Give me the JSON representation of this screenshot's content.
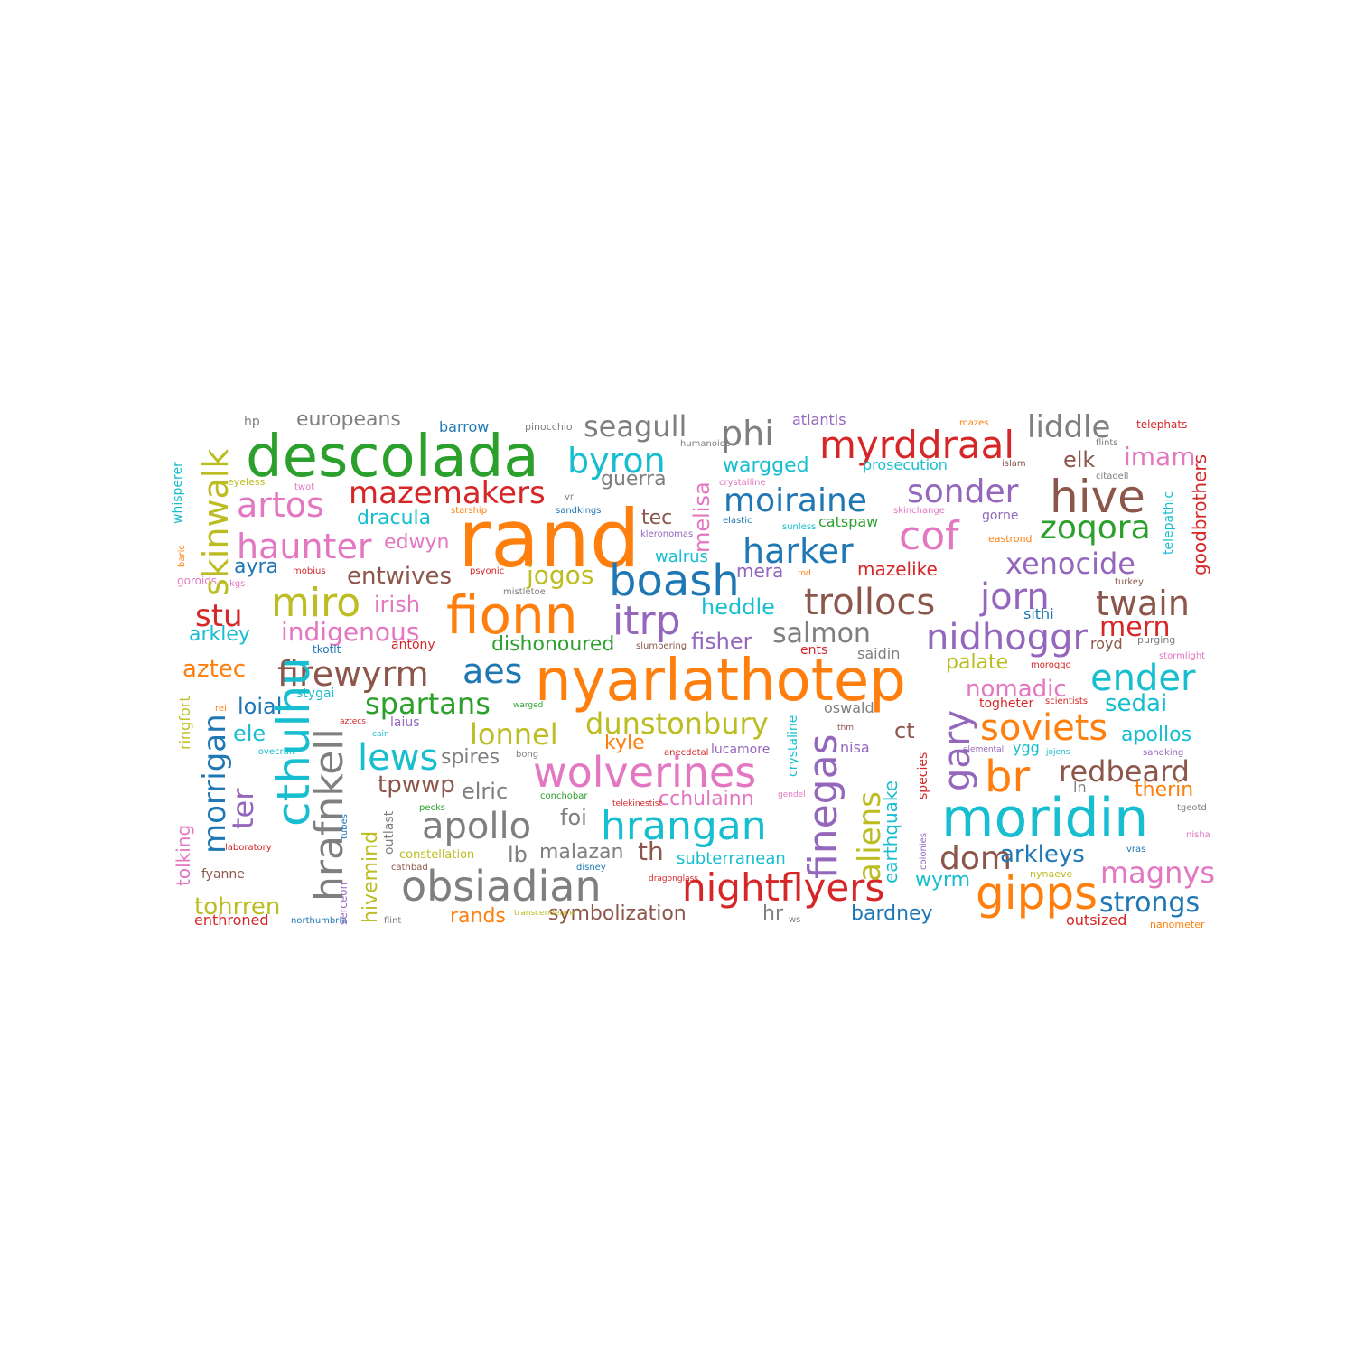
{
  "palette": {
    "blue": "#1f77b4",
    "orange": "#ff7f0e",
    "green": "#2ca02c",
    "red": "#d62728",
    "purple": "#9467bd",
    "brown": "#8c564b",
    "pink": "#e377c2",
    "gray": "#7f7f7f",
    "olive": "#bcbd22",
    "cyan": "#17becf"
  },
  "words": [
    {
      "text": "rand",
      "color": "orange"
    },
    {
      "text": "nyarlathotep",
      "color": "orange"
    },
    {
      "text": "descolada",
      "color": "green"
    },
    {
      "text": "moridin",
      "color": "cyan"
    },
    {
      "text": "fionn",
      "color": "orange"
    },
    {
      "text": "obsiadian",
      "color": "gray"
    },
    {
      "text": "wolverines",
      "color": "pink"
    },
    {
      "text": "nightflyers",
      "color": "red"
    },
    {
      "text": "hrangan",
      "color": "cyan"
    },
    {
      "text": "boash",
      "color": "blue"
    },
    {
      "text": "hive",
      "color": "brown"
    },
    {
      "text": "myrddraal",
      "color": "red"
    },
    {
      "text": "miro",
      "color": "olive"
    },
    {
      "text": "cthulhu",
      "color": "cyan"
    },
    {
      "text": "hrafnkell",
      "color": "gray"
    },
    {
      "text": "apollo",
      "color": "gray"
    },
    {
      "text": "gipps",
      "color": "orange"
    },
    {
      "text": "br",
      "color": "orange"
    },
    {
      "text": "finegas",
      "color": "purple"
    },
    {
      "text": "trollocs",
      "color": "brown"
    },
    {
      "text": "skinwalk",
      "color": "olive"
    },
    {
      "text": "morrigan",
      "color": "blue"
    },
    {
      "text": "moiraine",
      "color": "blue"
    },
    {
      "text": "cof",
      "color": "pink"
    },
    {
      "text": "nidhoggr",
      "color": "purple"
    },
    {
      "text": "itrp",
      "color": "purple"
    },
    {
      "text": "jorn",
      "color": "purple"
    },
    {
      "text": "twain",
      "color": "brown"
    },
    {
      "text": "ender",
      "color": "cyan"
    },
    {
      "text": "soviets",
      "color": "orange"
    },
    {
      "text": "firewyrm",
      "color": "brown"
    },
    {
      "text": "artos",
      "color": "pink"
    },
    {
      "text": "haunter",
      "color": "pink"
    },
    {
      "text": "mazemakers",
      "color": "red"
    },
    {
      "text": "byron",
      "color": "cyan"
    },
    {
      "text": "phi",
      "color": "gray"
    },
    {
      "text": "sonder",
      "color": "purple"
    },
    {
      "text": "zoqora",
      "color": "green"
    },
    {
      "text": "harker",
      "color": "blue"
    },
    {
      "text": "xenocide",
      "color": "purple"
    },
    {
      "text": "liddle",
      "color": "gray"
    },
    {
      "text": "seagull",
      "color": "gray"
    },
    {
      "text": "lews",
      "color": "cyan"
    },
    {
      "text": "aes",
      "color": "blue"
    },
    {
      "text": "spartans",
      "color": "green"
    },
    {
      "text": "dunstonbury",
      "color": "olive"
    },
    {
      "text": "lonnel",
      "color": "olive"
    },
    {
      "text": "redbeard",
      "color": "brown"
    },
    {
      "text": "gary",
      "color": "purple"
    },
    {
      "text": "dom",
      "color": "brown"
    },
    {
      "text": "magnys",
      "color": "pink"
    },
    {
      "text": "strongs",
      "color": "blue"
    },
    {
      "text": "salmon",
      "color": "gray"
    },
    {
      "text": "aliens",
      "color": "olive"
    },
    {
      "text": "stu",
      "color": "red"
    },
    {
      "text": "ter",
      "color": "purple"
    },
    {
      "text": "mern",
      "color": "red"
    },
    {
      "text": "sedai",
      "color": "cyan"
    },
    {
      "text": "imam",
      "color": "pink"
    },
    {
      "text": "indigenous",
      "color": "pink"
    },
    {
      "text": "entwives",
      "color": "brown"
    },
    {
      "text": "jogos",
      "color": "olive"
    },
    {
      "text": "tohrren",
      "color": "olive"
    },
    {
      "text": "melisa",
      "color": "pink"
    },
    {
      "text": "arkleys",
      "color": "blue"
    },
    {
      "text": "heddle",
      "color": "cyan"
    },
    {
      "text": "nomadic",
      "color": "pink"
    },
    {
      "text": "aztec",
      "color": "orange"
    },
    {
      "text": "tpwwp",
      "color": "brown"
    },
    {
      "text": "cchulainn",
      "color": "pink"
    },
    {
      "text": "wargged",
      "color": "cyan"
    },
    {
      "text": "dracula",
      "color": "cyan"
    },
    {
      "text": "europeans",
      "color": "gray"
    },
    {
      "text": "irish",
      "color": "pink"
    },
    {
      "text": "dishonoured",
      "color": "green"
    },
    {
      "text": "fisher",
      "color": "purple"
    },
    {
      "text": "loial",
      "color": "blue"
    },
    {
      "text": "hivemind",
      "color": "olive"
    },
    {
      "text": "symbolization",
      "color": "brown"
    },
    {
      "text": "therin",
      "color": "orange"
    },
    {
      "text": "apollos",
      "color": "cyan"
    },
    {
      "text": "earthquake",
      "color": "cyan"
    },
    {
      "text": "arkley",
      "color": "cyan"
    },
    {
      "text": "ele",
      "color": "cyan"
    },
    {
      "text": "elric",
      "color": "gray"
    },
    {
      "text": "malazan",
      "color": "gray"
    },
    {
      "text": "th",
      "color": "brown"
    },
    {
      "text": "edwyn",
      "color": "pink"
    },
    {
      "text": "guerra",
      "color": "gray"
    },
    {
      "text": "spires",
      "color": "gray"
    },
    {
      "text": "kyle",
      "color": "orange"
    },
    {
      "text": "goodbrothers",
      "color": "red"
    },
    {
      "text": "mazelike",
      "color": "red"
    },
    {
      "text": "wyrm",
      "color": "cyan"
    },
    {
      "text": "bardney",
      "color": "blue"
    },
    {
      "text": "rands",
      "color": "orange"
    },
    {
      "text": "mera",
      "color": "purple"
    },
    {
      "text": "tec",
      "color": "brown"
    },
    {
      "text": "ayra",
      "color": "blue"
    },
    {
      "text": "elk",
      "color": "brown"
    },
    {
      "text": "palate",
      "color": "olive"
    },
    {
      "text": "tolking",
      "color": "pink"
    },
    {
      "text": "foi",
      "color": "gray"
    },
    {
      "text": "lb",
      "color": "gray"
    },
    {
      "text": "hr",
      "color": "gray"
    },
    {
      "text": "ct",
      "color": "brown"
    },
    {
      "text": "outsized",
      "color": "red"
    },
    {
      "text": "subterranean",
      "color": "cyan"
    },
    {
      "text": "enthroned",
      "color": "red"
    },
    {
      "text": "walrus",
      "color": "cyan"
    },
    {
      "text": "barrow",
      "color": "blue"
    },
    {
      "text": "atlantis",
      "color": "purple"
    },
    {
      "text": "prosecution",
      "color": "cyan"
    },
    {
      "text": "catspaw",
      "color": "green"
    },
    {
      "text": "lucamore",
      "color": "purple"
    },
    {
      "text": "oswald",
      "color": "gray"
    },
    {
      "text": "saidin",
      "color": "gray"
    },
    {
      "text": "sithi",
      "color": "blue"
    },
    {
      "text": "royd",
      "color": "brown"
    },
    {
      "text": "nisa",
      "color": "purple"
    },
    {
      "text": "ygg",
      "color": "cyan"
    },
    {
      "text": "ln",
      "color": "gray"
    },
    {
      "text": "ents",
      "color": "red"
    },
    {
      "text": "antony",
      "color": "red"
    },
    {
      "text": "stygai",
      "color": "cyan"
    },
    {
      "text": "hp",
      "color": "gray"
    },
    {
      "text": "tkotlt",
      "color": "blue"
    },
    {
      "text": "gorne",
      "color": "purple"
    },
    {
      "text": "fyanne",
      "color": "brown"
    },
    {
      "text": "ringfort",
      "color": "olive"
    },
    {
      "text": "laius",
      "color": "purple"
    },
    {
      "text": "constellation",
      "color": "olive"
    },
    {
      "text": "whisperer",
      "color": "cyan"
    },
    {
      "text": "telepathic",
      "color": "cyan"
    },
    {
      "text": "nynaeve",
      "color": "olive"
    },
    {
      "text": "crystaline",
      "color": "cyan"
    },
    {
      "text": "species",
      "color": "red"
    },
    {
      "text": "islam",
      "color": "brown"
    },
    {
      "text": "pinocchio",
      "color": "gray"
    },
    {
      "text": "telephats",
      "color": "red"
    },
    {
      "text": "mazes",
      "color": "orange"
    },
    {
      "text": "citadell",
      "color": "gray"
    },
    {
      "text": "humanoids",
      "color": "gray"
    },
    {
      "text": "eyeless",
      "color": "olive"
    },
    {
      "text": "twot",
      "color": "pink"
    },
    {
      "text": "starship",
      "color": "orange"
    },
    {
      "text": "sandkings",
      "color": "blue"
    },
    {
      "text": "kleronomas",
      "color": "purple"
    },
    {
      "text": "elastic",
      "color": "blue"
    },
    {
      "text": "sunless",
      "color": "cyan"
    },
    {
      "text": "rod",
      "color": "orange"
    },
    {
      "text": "skinchange",
      "color": "pink"
    },
    {
      "text": "eastrond",
      "color": "orange"
    },
    {
      "text": "turkey",
      "color": "brown"
    },
    {
      "text": "baric",
      "color": "orange"
    },
    {
      "text": "goroids",
      "color": "pink"
    },
    {
      "text": "kgs",
      "color": "pink"
    },
    {
      "text": "mobius",
      "color": "red"
    },
    {
      "text": "psyonic",
      "color": "red"
    },
    {
      "text": "mistletoe",
      "color": "gray"
    },
    {
      "text": "slumbering",
      "color": "brown"
    },
    {
      "text": "purging",
      "color": "gray"
    },
    {
      "text": "stormlight",
      "color": "pink"
    },
    {
      "text": "moroqqo",
      "color": "red"
    },
    {
      "text": "scientists",
      "color": "red"
    },
    {
      "text": "togheter",
      "color": "red"
    },
    {
      "text": "warged",
      "color": "green"
    },
    {
      "text": "aztecs",
      "color": "red"
    },
    {
      "text": "cain",
      "color": "cyan"
    },
    {
      "text": "bong",
      "color": "gray"
    },
    {
      "text": "anecdotal",
      "color": "red"
    },
    {
      "text": "thm",
      "color": "brown"
    },
    {
      "text": "elemental",
      "color": "purple"
    },
    {
      "text": "jojens",
      "color": "cyan"
    },
    {
      "text": "sandking",
      "color": "purple"
    },
    {
      "text": "lovecraft",
      "color": "cyan"
    },
    {
      "text": "rei",
      "color": "orange"
    },
    {
      "text": "conchobar",
      "color": "green"
    },
    {
      "text": "telekinestist",
      "color": "red"
    },
    {
      "text": "gendel",
      "color": "pink"
    },
    {
      "text": "tgeotd",
      "color": "gray"
    },
    {
      "text": "nisha",
      "color": "pink"
    },
    {
      "text": "pecks",
      "color": "green"
    },
    {
      "text": "laboratory",
      "color": "red"
    },
    {
      "text": "outlast",
      "color": "gray"
    },
    {
      "text": "cathbad",
      "color": "brown"
    },
    {
      "text": "disney",
      "color": "blue"
    },
    {
      "text": "dragonglass",
      "color": "red"
    },
    {
      "text": "tubes",
      "color": "blue"
    },
    {
      "text": "vras",
      "color": "blue"
    },
    {
      "text": "transcendence",
      "color": "olive"
    },
    {
      "text": "flint",
      "color": "gray"
    },
    {
      "text": "northumbria",
      "color": "blue"
    },
    {
      "text": "colonies",
      "color": "purple"
    },
    {
      "text": "ws",
      "color": "gray"
    },
    {
      "text": "nanometer",
      "color": "orange"
    },
    {
      "text": "crystalline",
      "color": "pink"
    },
    {
      "text": "flints",
      "color": "gray"
    },
    {
      "text": "vr",
      "color": "gray"
    },
    {
      "text": "serceon",
      "color": "purple"
    }
  ]
}
